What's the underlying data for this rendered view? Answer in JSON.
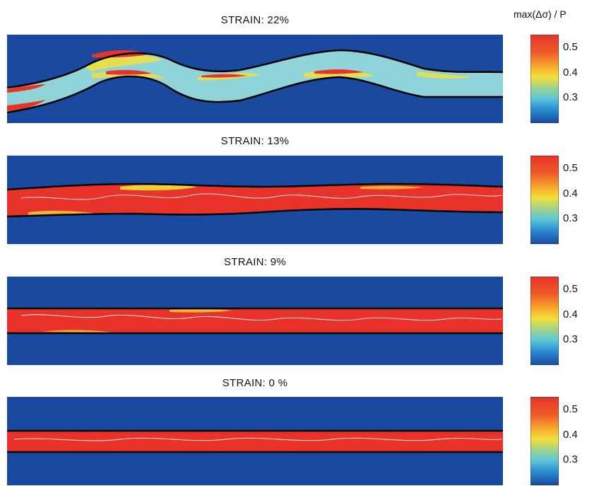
{
  "colorbar": {
    "title": "max(Δσ) / P",
    "ticks": [
      0.5,
      0.4,
      0.3
    ]
  },
  "panels": [
    {
      "title": "STRAIN: 22%"
    },
    {
      "title": "STRAIN: 13%"
    },
    {
      "title": "STRAIN: 9%"
    },
    {
      "title": "STRAIN: 0 %"
    }
  ],
  "colors": {
    "background_field": "#1a49a0",
    "high": "#e8322a",
    "mid": "#f2e03a",
    "low": "#1a49a0"
  },
  "chart_data": {
    "type": "heatmap",
    "colormap": "jet",
    "colorbar_ticks": [
      0.3,
      0.4,
      0.5
    ],
    "strains_percent": [
      22,
      13,
      9,
      0
    ]
  }
}
